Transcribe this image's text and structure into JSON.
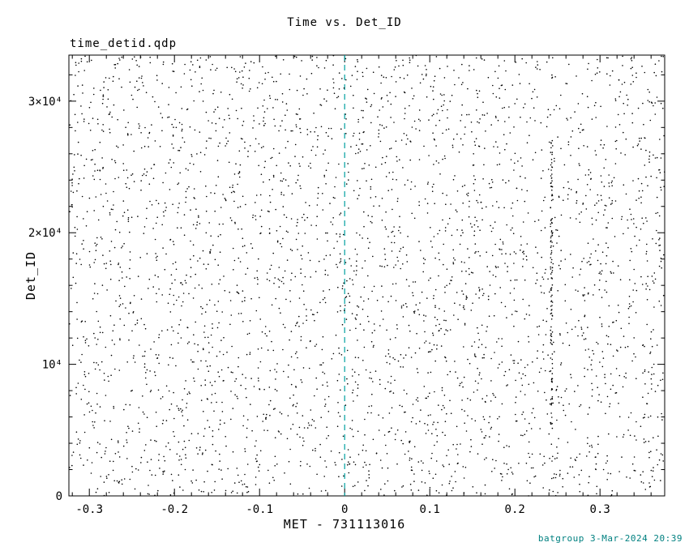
{
  "title": "Time vs. Det_ID",
  "file_label": "time_detid.qdp",
  "footer": "batgroup  3-Mar-2024 20:39",
  "colors": {
    "background": "#ffffff",
    "axis": "#000000",
    "marker": "#000000",
    "vline": "#00A0A0",
    "footer_text": "#008080"
  },
  "chart_data": {
    "type": "scatter",
    "title": "Time vs. Det_ID",
    "xlabel": "MET - 731113016",
    "ylabel": "Det_ID",
    "x_range": [
      -0.324,
      0.376
    ],
    "y_range": [
      0,
      33500
    ],
    "x_ticks": [
      {
        "value": -0.3,
        "label": "-0.3"
      },
      {
        "value": -0.2,
        "label": "-0.2"
      },
      {
        "value": -0.1,
        "label": "-0.1"
      },
      {
        "value": 0,
        "label": "0"
      },
      {
        "value": 0.1,
        "label": "0.1"
      },
      {
        "value": 0.2,
        "label": "0.2"
      },
      {
        "value": 0.3,
        "label": "0.3"
      }
    ],
    "y_ticks": [
      {
        "value": 0,
        "label": "0"
      },
      {
        "value": 10000,
        "label": "10⁴"
      },
      {
        "value": 20000,
        "label": "2×10⁴"
      },
      {
        "value": 30000,
        "label": "3×10⁴"
      }
    ],
    "x_minor_step": 0.02,
    "y_minor_step": 2000,
    "grid": false,
    "legend": false,
    "points": {
      "distribution": "uniform-random",
      "count": 3500,
      "seed": 42,
      "marker": "dot",
      "marker_size_px": 1.6,
      "note": "dense uniform scatter of event detector IDs vs time, no visible trend"
    },
    "clusters": [
      {
        "type": "dense-column",
        "x": 0.243,
        "x_jitter": 0.0012,
        "y_min": 5000,
        "y_max": 27000,
        "count": 120
      }
    ],
    "annotations": [
      {
        "type": "vline",
        "x": 0,
        "style": "dashed",
        "color": "#00A0A0"
      }
    ]
  }
}
